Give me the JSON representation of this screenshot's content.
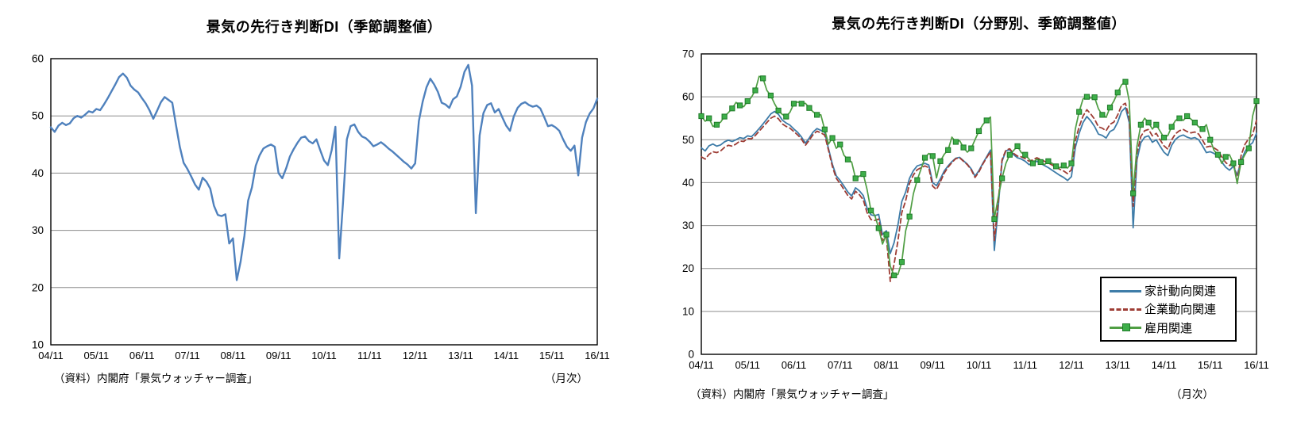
{
  "page_background": "#ffffff",
  "chart_data": [
    {
      "type": "line",
      "title": "景気の先行き判断DI（季節調整値）",
      "source_note": "（資料）内閣府「景気ウォッチャー調査」",
      "freq_note": "（月次）",
      "x_frequency": "monthly",
      "x_range": "2004/11 - 2016/11",
      "x_tick_labels": [
        "04/11",
        "05/11",
        "06/11",
        "07/11",
        "08/11",
        "09/11",
        "10/11",
        "11/11",
        "12/11",
        "13/11",
        "14/11",
        "15/11",
        "16/11"
      ],
      "y_axis": {
        "min": 10,
        "max": 60,
        "step": 10
      },
      "grid": "horizontal",
      "series": [
        {
          "name": "景気の先行き判断DI（季節調整値）",
          "color": "#4F81BD",
          "style": "solid",
          "width": 2.4,
          "values": [
            48.0,
            47.2,
            48.3,
            48.8,
            48.4,
            48.7,
            49.6,
            50.0,
            49.7,
            50.2,
            50.8,
            50.6,
            51.2,
            51.0,
            52.0,
            53.1,
            54.3,
            55.5,
            56.8,
            57.4,
            56.7,
            55.3,
            54.6,
            54.1,
            53.1,
            52.2,
            51.0,
            49.5,
            50.9,
            52.4,
            53.3,
            52.8,
            52.3,
            48.3,
            44.6,
            41.8,
            40.7,
            39.4,
            38.0,
            37.1,
            39.2,
            38.5,
            37.3,
            34.3,
            32.7,
            32.5,
            32.8,
            27.7,
            28.6,
            21.3,
            24.5,
            29.0,
            35.2,
            37.5,
            41.3,
            43.1,
            44.3,
            44.7,
            45.0,
            44.6,
            40.0,
            39.1,
            40.8,
            42.9,
            44.2,
            45.3,
            46.2,
            46.4,
            45.6,
            45.2,
            45.9,
            44.0,
            42.2,
            41.4,
            44.0,
            48.1,
            25.1,
            34.9,
            45.9,
            48.2,
            48.5,
            47.2,
            46.4,
            46.1,
            45.5,
            44.7,
            45.0,
            45.4,
            44.9,
            44.3,
            43.8,
            43.2,
            42.6,
            42.0,
            41.5,
            40.8,
            41.7,
            49.1,
            52.5,
            55.0,
            56.5,
            55.5,
            54.2,
            52.3,
            52.0,
            51.4,
            52.9,
            53.4,
            55.1,
            57.7,
            58.9,
            55.3,
            33.0,
            46.6,
            50.5,
            51.9,
            52.2,
            50.6,
            51.2,
            49.7,
            48.3,
            47.4,
            49.9,
            51.4,
            52.1,
            52.4,
            51.9,
            51.6,
            51.8,
            51.3,
            49.8,
            48.2,
            48.4,
            48.0,
            47.4,
            45.9,
            44.6,
            43.9,
            44.8,
            39.6,
            46.2,
            48.9,
            50.4,
            51.3,
            53.0
          ]
        }
      ]
    },
    {
      "type": "line",
      "title": "景気の先行き判断DI（分野別、季節調整値）",
      "source_note": "（資料）内閣府「景気ウォッチャー調査」",
      "freq_note": "（月次）",
      "x_frequency": "monthly",
      "x_range": "2004/11 - 2016/11",
      "x_tick_labels": [
        "04/11",
        "05/11",
        "06/11",
        "07/11",
        "08/11",
        "09/11",
        "10/11",
        "11/11",
        "12/11",
        "13/11",
        "14/11",
        "15/11",
        "16/11"
      ],
      "y_axis": {
        "min": 0,
        "max": 70,
        "step": 10
      },
      "grid": "horizontal",
      "legend_position": "bottom-right-inside",
      "legend": [
        {
          "label": "家計動向関連",
          "style": "solid",
          "color": "#3E7CA8"
        },
        {
          "label": "企業動向関連",
          "style": "dashed",
          "color": "#9E3D35"
        },
        {
          "label": "雇用関連",
          "style": "solid-square-marker",
          "color": "#4F9E43",
          "marker_color": "#3DAE49"
        }
      ],
      "series": [
        {
          "name": "家計動向関連",
          "color": "#3E7CA8",
          "style": "solid",
          "width": 1.8,
          "values": [
            48.1,
            47.4,
            48.6,
            49.0,
            48.5,
            48.8,
            49.5,
            49.9,
            49.6,
            50.0,
            50.5,
            50.3,
            50.9,
            50.7,
            51.6,
            52.6,
            53.7,
            54.8,
            56.0,
            56.6,
            55.9,
            54.6,
            53.9,
            53.4,
            52.5,
            51.7,
            50.6,
            49.2,
            50.4,
            51.8,
            52.6,
            52.2,
            51.7,
            47.9,
            44.3,
            41.6,
            40.5,
            39.2,
            37.8,
            36.9,
            38.8,
            38.1,
            37.0,
            34.1,
            32.5,
            32.3,
            32.6,
            27.9,
            28.8,
            23.5,
            26.0,
            30.2,
            35.6,
            37.8,
            41.0,
            42.8,
            43.9,
            44.2,
            44.5,
            44.1,
            40.0,
            39.3,
            40.9,
            42.7,
            43.9,
            44.9,
            45.7,
            45.9,
            45.1,
            44.3,
            43.2,
            41.5,
            42.8,
            44.5,
            46.0,
            47.6,
            24.2,
            34.2,
            45.0,
            47.4,
            47.7,
            46.5,
            45.8,
            45.5,
            45.0,
            44.2,
            44.5,
            45.0,
            44.5,
            44.0,
            43.5,
            42.9,
            42.3,
            41.7,
            41.2,
            40.5,
            41.4,
            48.2,
            51.5,
            54.0,
            55.4,
            54.4,
            53.1,
            51.3,
            51.0,
            50.4,
            51.9,
            52.4,
            54.1,
            56.6,
            57.5,
            54.0,
            29.5,
            45.3,
            49.3,
            50.6,
            50.9,
            49.4,
            50.0,
            48.5,
            47.1,
            46.3,
            48.7,
            50.1,
            50.8,
            51.1,
            50.6,
            50.3,
            50.5,
            50.0,
            48.6,
            47.0,
            47.2,
            46.8,
            46.2,
            44.8,
            43.6,
            42.9,
            43.8,
            41.8,
            45.0,
            47.2,
            48.6,
            49.3,
            51.5
          ]
        },
        {
          "name": "企業動向関連",
          "color": "#9E3D35",
          "style": "dashed",
          "width": 1.8,
          "values": [
            46.0,
            45.5,
            46.6,
            47.2,
            47.0,
            47.4,
            48.2,
            48.7,
            48.5,
            49.0,
            49.7,
            49.6,
            50.3,
            50.2,
            51.0,
            52.0,
            53.0,
            54.0,
            55.0,
            55.5,
            54.9,
            53.7,
            53.1,
            52.7,
            51.9,
            51.1,
            50.1,
            48.7,
            49.9,
            51.2,
            52.0,
            51.6,
            51.1,
            47.5,
            43.8,
            41.0,
            39.8,
            38.4,
            37.0,
            36.2,
            38.0,
            37.2,
            36.0,
            33.0,
            31.4,
            31.2,
            31.5,
            26.5,
            27.3,
            17.0,
            21.0,
            26.5,
            33.0,
            35.8,
            39.8,
            41.8,
            43.0,
            43.5,
            43.9,
            43.5,
            39.2,
            38.4,
            40.2,
            42.2,
            43.6,
            44.7,
            45.6,
            45.8,
            45.0,
            44.2,
            43.0,
            41.2,
            42.5,
            44.3,
            45.8,
            47.2,
            26.5,
            35.5,
            45.3,
            47.6,
            47.9,
            46.8,
            46.2,
            46.0,
            45.6,
            45.0,
            45.3,
            45.8,
            45.4,
            45.0,
            44.6,
            44.1,
            43.6,
            43.1,
            42.7,
            42.1,
            43.0,
            49.8,
            53.0,
            55.5,
            57.0,
            56.0,
            54.8,
            53.0,
            52.7,
            52.1,
            53.6,
            54.1,
            55.8,
            58.0,
            58.5,
            55.0,
            34.5,
            46.8,
            50.8,
            52.1,
            52.4,
            50.9,
            51.5,
            50.0,
            48.6,
            47.8,
            50.0,
            51.4,
            52.1,
            52.4,
            51.9,
            51.6,
            51.8,
            51.3,
            49.9,
            48.3,
            48.5,
            48.1,
            47.5,
            46.0,
            44.7,
            44.0,
            44.9,
            40.3,
            46.3,
            48.9,
            50.3,
            51.2,
            54.5
          ]
        },
        {
          "name": "雇用関連",
          "color": "#4F9E43",
          "style": "solid",
          "width": 1.7,
          "marker": "square",
          "marker_color": "#3DAE49",
          "marker_border": "#1E7A28",
          "values": [
            55.5,
            54.3,
            55.0,
            53.1,
            53.5,
            54.1,
            55.4,
            56.3,
            57.3,
            58.7,
            58.0,
            57.7,
            59.0,
            59.9,
            61.5,
            64.8,
            64.3,
            61.5,
            60.3,
            58.4,
            56.8,
            55.9,
            55.4,
            56.4,
            58.4,
            58.8,
            58.4,
            58.5,
            57.4,
            56.5,
            55.8,
            55.8,
            52.4,
            49.0,
            50.4,
            48.0,
            48.9,
            46.4,
            45.4,
            44.8,
            41.0,
            41.5,
            42.0,
            38.4,
            33.5,
            32.4,
            29.4,
            25.7,
            27.9,
            20.5,
            18.4,
            18.6,
            21.5,
            28.8,
            32.1,
            37.4,
            40.6,
            43.2,
            45.8,
            46.8,
            46.2,
            41.1,
            45.0,
            46.6,
            47.6,
            50.6,
            49.5,
            49.8,
            48.2,
            47.1,
            48.0,
            50.0,
            52.0,
            53.5,
            54.5,
            55.3,
            31.5,
            36.5,
            41.0,
            44.5,
            46.5,
            47.5,
            48.5,
            47.0,
            46.5,
            45.5,
            44.5,
            45.5,
            44.8,
            44.2,
            45.0,
            44.5,
            43.8,
            43.5,
            44.0,
            43.4,
            44.5,
            52.5,
            56.5,
            59.5,
            60.0,
            59.7,
            59.9,
            57.2,
            55.8,
            55.2,
            57.5,
            59.0,
            61.0,
            62.8,
            63.5,
            59.0,
            37.5,
            48.5,
            53.5,
            55.0,
            54.0,
            52.5,
            53.5,
            52.0,
            50.5,
            51.0,
            53.0,
            54.5,
            55.0,
            54.5,
            55.5,
            54.8,
            54.0,
            53.0,
            52.5,
            53.5,
            50.0,
            47.5,
            46.5,
            44.5,
            46.0,
            46.5,
            44.5,
            39.8,
            44.8,
            46.5,
            48.0,
            55.5,
            59.0
          ]
        }
      ]
    }
  ]
}
